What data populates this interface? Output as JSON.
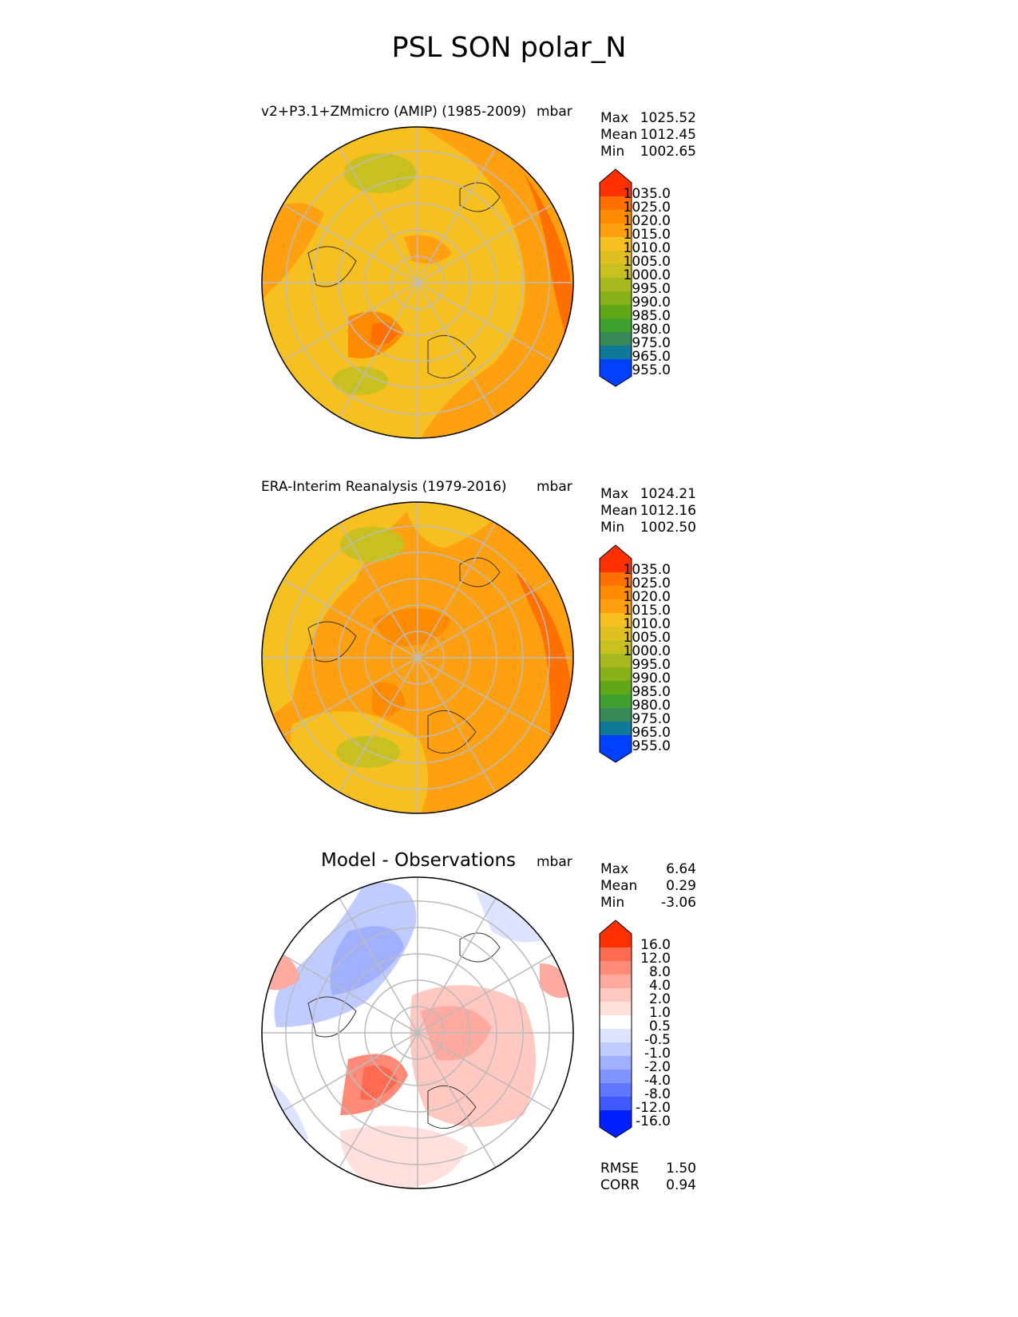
{
  "title": "PSL SON polar_N",
  "panels": [
    {
      "id": "model",
      "title": "v2+P3.1+ZMmicro (AMIP) (1985-2009)",
      "units": "mbar",
      "stats": [
        {
          "label": "Max",
          "value": "1025.52"
        },
        {
          "label": "Mean",
          "value": "1012.45"
        },
        {
          "label": "Min",
          "value": "1002.65"
        }
      ]
    },
    {
      "id": "obs",
      "title": "ERA-Interim Reanalysis (1979-2016)",
      "units": "mbar",
      "stats": [
        {
          "label": "Max",
          "value": "1024.21"
        },
        {
          "label": "Mean",
          "value": "1012.16"
        },
        {
          "label": "Min",
          "value": "1002.50"
        }
      ]
    },
    {
      "id": "diff",
      "title": "Model - Observations",
      "units": "mbar",
      "stats": [
        {
          "label": "Max",
          "value": "6.64"
        },
        {
          "label": "Mean",
          "value": "0.29"
        },
        {
          "label": "Min",
          "value": "-3.06"
        }
      ],
      "metrics": [
        {
          "label": "RMSE",
          "value": "1.50"
        },
        {
          "label": "CORR",
          "value": "0.94"
        }
      ]
    }
  ],
  "colorbars": {
    "absolute": {
      "labels": [
        "1035.0",
        "1025.0",
        "1020.0",
        "1015.0",
        "1010.0",
        "1005.0",
        "1000.0",
        "995.0",
        "990.0",
        "985.0",
        "980.0",
        "975.0",
        "965.0",
        "955.0"
      ],
      "colors": [
        "#ff3000",
        "#ff5000",
        "#ff7000",
        "#ff8c00",
        "#ffa010",
        "#f5c020",
        "#e0c020",
        "#c8c020",
        "#a8b820",
        "#88b018",
        "#60a818",
        "#40a030",
        "#388858",
        "#107898",
        "#0860c8",
        "#0040ff"
      ]
    },
    "difference": {
      "labels": [
        "16.0",
        "12.0",
        "8.0",
        "4.0",
        "2.0",
        "1.0",
        "0.5",
        "-0.5",
        "-1.0",
        "-2.0",
        "-4.0",
        "-8.0",
        "-12.0",
        "-16.0"
      ],
      "colors": [
        "#ff3000",
        "#ff4a30",
        "#ff6a50",
        "#ff8a78",
        "#ffaaa0",
        "#ffc8c0",
        "#ffe0dc",
        "#ffffff",
        "#dce4ff",
        "#c0ccff",
        "#a0b0ff",
        "#8094ff",
        "#6078ff",
        "#4058ff",
        "#2040ff",
        "#0020ff"
      ]
    }
  }
}
